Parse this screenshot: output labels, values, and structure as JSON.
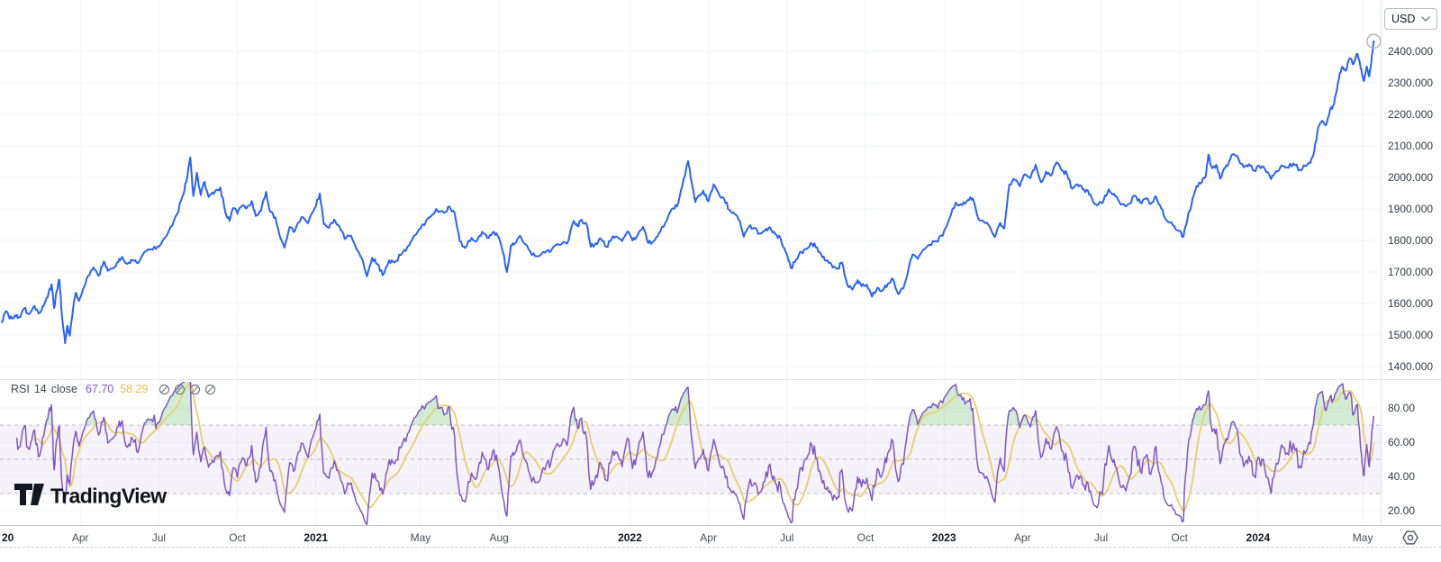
{
  "app": {
    "watermark": "TradingView"
  },
  "currency_selector": {
    "label": "USD"
  },
  "rsi_legend": {
    "title": "RSI",
    "period": "14",
    "source": "close",
    "value": "67.70",
    "ma_value": "58.29",
    "controls": [
      "hide-icon",
      "settings-icon",
      "delete-icon",
      "more-icon"
    ]
  },
  "colors": {
    "price_line": "#2A63F5",
    "rsi_line": "#7E57C2",
    "rsi_ma_line": "#E7CF6E",
    "rsi_value_text": "#7E57C2",
    "rsi_ma_value_text": "#DDC458",
    "band_fill": "#7E57C2",
    "overbought_fill": "#4CAF50",
    "grid": "#F1F3F6",
    "band_dash": "#8B8E99",
    "marker_ring": "#B2B5BE",
    "icon_gray": "#787B86"
  },
  "chart_data": {
    "type": "line",
    "title": "Gold price in USD with RSI(14) indicator, 2020 to May 2024",
    "x_unit": "months_since_jan_2020",
    "x_ticks": [
      {
        "m": 0,
        "label": "20",
        "year": true,
        "edge": true
      },
      {
        "m": 3,
        "label": "Apr"
      },
      {
        "m": 6,
        "label": "Jul"
      },
      {
        "m": 9,
        "label": "Oct"
      },
      {
        "m": 12,
        "label": "2021",
        "year": true
      },
      {
        "m": 16,
        "label": "May"
      },
      {
        "m": 19,
        "label": "Aug"
      },
      {
        "m": 24,
        "label": "2022",
        "year": true
      },
      {
        "m": 27,
        "label": "Apr"
      },
      {
        "m": 30,
        "label": "Jul"
      },
      {
        "m": 33,
        "label": "Oct"
      },
      {
        "m": 36,
        "label": "2023",
        "year": true
      },
      {
        "m": 39,
        "label": "Apr"
      },
      {
        "m": 42,
        "label": "Jul"
      },
      {
        "m": 45,
        "label": "Oct"
      },
      {
        "m": 48,
        "label": "2024",
        "year": true
      },
      {
        "m": 52,
        "label": "May"
      }
    ],
    "price_pane": {
      "yticks": [
        2400,
        2300,
        2200,
        2100,
        2000,
        1900,
        1800,
        1700,
        1600,
        1500,
        1400
      ],
      "tick_decimals": 3,
      "series": {
        "name": "close",
        "points": [
          [
            0,
            1541
          ],
          [
            0.15,
            1576
          ],
          [
            0.3,
            1552
          ],
          [
            0.5,
            1562
          ],
          [
            0.65,
            1556
          ],
          [
            0.85,
            1584
          ],
          [
            1.05,
            1566
          ],
          [
            1.25,
            1592
          ],
          [
            1.45,
            1570
          ],
          [
            1.6,
            1592
          ],
          [
            1.75,
            1620
          ],
          [
            1.9,
            1661
          ],
          [
            2.0,
            1586
          ],
          [
            2.1,
            1640
          ],
          [
            2.2,
            1676
          ],
          [
            2.3,
            1560
          ],
          [
            2.42,
            1474
          ],
          [
            2.5,
            1529
          ],
          [
            2.6,
            1498
          ],
          [
            2.72,
            1580
          ],
          [
            2.82,
            1634
          ],
          [
            2.95,
            1608
          ],
          [
            3.1,
            1645
          ],
          [
            3.3,
            1688
          ],
          [
            3.5,
            1715
          ],
          [
            3.7,
            1688
          ],
          [
            3.9,
            1733
          ],
          [
            4.05,
            1704
          ],
          [
            4.25,
            1712
          ],
          [
            4.45,
            1731
          ],
          [
            4.6,
            1748
          ],
          [
            4.8,
            1726
          ],
          [
            5.0,
            1737
          ],
          [
            5.2,
            1728
          ],
          [
            5.45,
            1764
          ],
          [
            5.7,
            1772
          ],
          [
            5.95,
            1781
          ],
          [
            6.2,
            1806
          ],
          [
            6.45,
            1843
          ],
          [
            6.7,
            1884
          ],
          [
            6.9,
            1940
          ],
          [
            7.05,
            1986
          ],
          [
            7.2,
            2063
          ],
          [
            7.32,
            1941
          ],
          [
            7.45,
            2015
          ],
          [
            7.6,
            1944
          ],
          [
            7.75,
            1986
          ],
          [
            7.9,
            1938
          ],
          [
            8.1,
            1948
          ],
          [
            8.35,
            1968
          ],
          [
            8.55,
            1886
          ],
          [
            8.7,
            1862
          ],
          [
            8.85,
            1903
          ],
          [
            9.0,
            1885
          ],
          [
            9.2,
            1912
          ],
          [
            9.35,
            1902
          ],
          [
            9.55,
            1925
          ],
          [
            9.7,
            1878
          ],
          [
            9.9,
            1893
          ],
          [
            10.1,
            1954
          ],
          [
            10.25,
            1891
          ],
          [
            10.45,
            1873
          ],
          [
            10.65,
            1806
          ],
          [
            10.8,
            1777
          ],
          [
            11.0,
            1843
          ],
          [
            11.2,
            1830
          ],
          [
            11.45,
            1874
          ],
          [
            11.7,
            1855
          ],
          [
            11.95,
            1902
          ],
          [
            12.15,
            1949
          ],
          [
            12.3,
            1852
          ],
          [
            12.5,
            1840
          ],
          [
            12.7,
            1866
          ],
          [
            12.9,
            1844
          ],
          [
            13.1,
            1805
          ],
          [
            13.35,
            1815
          ],
          [
            13.55,
            1772
          ],
          [
            13.75,
            1744
          ],
          [
            13.95,
            1686
          ],
          [
            14.15,
            1745
          ],
          [
            14.35,
            1725
          ],
          [
            14.55,
            1690
          ],
          [
            14.8,
            1737
          ],
          [
            15.0,
            1730
          ],
          [
            15.25,
            1754
          ],
          [
            15.5,
            1780
          ],
          [
            15.75,
            1815
          ],
          [
            16.0,
            1838
          ],
          [
            16.3,
            1872
          ],
          [
            16.6,
            1900
          ],
          [
            16.9,
            1888
          ],
          [
            17.1,
            1908
          ],
          [
            17.3,
            1888
          ],
          [
            17.5,
            1798
          ],
          [
            17.7,
            1776
          ],
          [
            17.95,
            1808
          ],
          [
            18.15,
            1798
          ],
          [
            18.35,
            1827
          ],
          [
            18.55,
            1808
          ],
          [
            18.75,
            1825
          ],
          [
            18.95,
            1814
          ],
          [
            19.15,
            1762
          ],
          [
            19.3,
            1700
          ],
          [
            19.45,
            1784
          ],
          [
            19.6,
            1790
          ],
          [
            19.8,
            1815
          ],
          [
            20.0,
            1788
          ],
          [
            20.25,
            1754
          ],
          [
            20.5,
            1750
          ],
          [
            20.75,
            1761
          ],
          [
            21.0,
            1770
          ],
          [
            21.3,
            1786
          ],
          [
            21.6,
            1790
          ],
          [
            21.85,
            1862
          ],
          [
            22.0,
            1845
          ],
          [
            22.15,
            1866
          ],
          [
            22.35,
            1850
          ],
          [
            22.5,
            1780
          ],
          [
            22.7,
            1792
          ],
          [
            22.9,
            1804
          ],
          [
            23.1,
            1780
          ],
          [
            23.3,
            1805
          ],
          [
            23.5,
            1812
          ],
          [
            23.7,
            1798
          ],
          [
            23.9,
            1828
          ],
          [
            24.1,
            1800
          ],
          [
            24.3,
            1818
          ],
          [
            24.5,
            1843
          ],
          [
            24.7,
            1792
          ],
          [
            24.9,
            1797
          ],
          [
            25.1,
            1822
          ],
          [
            25.35,
            1856
          ],
          [
            25.6,
            1900
          ],
          [
            25.8,
            1908
          ],
          [
            26.0,
            1974
          ],
          [
            26.22,
            2052
          ],
          [
            26.35,
            1988
          ],
          [
            26.5,
            1922
          ],
          [
            26.65,
            1943
          ],
          [
            26.8,
            1958
          ],
          [
            27.0,
            1924
          ],
          [
            27.2,
            1978
          ],
          [
            27.4,
            1948
          ],
          [
            27.6,
            1932
          ],
          [
            27.8,
            1897
          ],
          [
            28.0,
            1884
          ],
          [
            28.2,
            1862
          ],
          [
            28.35,
            1812
          ],
          [
            28.55,
            1844
          ],
          [
            28.75,
            1840
          ],
          [
            28.95,
            1822
          ],
          [
            29.15,
            1830
          ],
          [
            29.35,
            1842
          ],
          [
            29.55,
            1820
          ],
          [
            29.75,
            1808
          ],
          [
            29.95,
            1764
          ],
          [
            30.15,
            1712
          ],
          [
            30.35,
            1740
          ],
          [
            30.55,
            1764
          ],
          [
            30.75,
            1773
          ],
          [
            30.95,
            1790
          ],
          [
            31.15,
            1778
          ],
          [
            31.35,
            1747
          ],
          [
            31.55,
            1737
          ],
          [
            31.75,
            1714
          ],
          [
            31.95,
            1712
          ],
          [
            32.1,
            1730
          ],
          [
            32.3,
            1662
          ],
          [
            32.5,
            1644
          ],
          [
            32.7,
            1674
          ],
          [
            32.85,
            1655
          ],
          [
            33.05,
            1660
          ],
          [
            33.25,
            1622
          ],
          [
            33.45,
            1650
          ],
          [
            33.65,
            1642
          ],
          [
            33.85,
            1662
          ],
          [
            34.05,
            1677
          ],
          [
            34.25,
            1630
          ],
          [
            34.45,
            1648
          ],
          [
            34.65,
            1712
          ],
          [
            34.8,
            1755
          ],
          [
            35.0,
            1742
          ],
          [
            35.2,
            1770
          ],
          [
            35.45,
            1786
          ],
          [
            35.7,
            1798
          ],
          [
            35.95,
            1815
          ],
          [
            36.2,
            1868
          ],
          [
            36.45,
            1920
          ],
          [
            36.7,
            1912
          ],
          [
            36.9,
            1928
          ],
          [
            37.1,
            1934
          ],
          [
            37.3,
            1872
          ],
          [
            37.5,
            1862
          ],
          [
            37.75,
            1843
          ],
          [
            37.95,
            1811
          ],
          [
            38.15,
            1856
          ],
          [
            38.3,
            1838
          ],
          [
            38.5,
            1978
          ],
          [
            38.7,
            1992
          ],
          [
            38.9,
            1972
          ],
          [
            39.1,
            2010
          ],
          [
            39.3,
            1998
          ],
          [
            39.5,
            2040
          ],
          [
            39.7,
            1985
          ],
          [
            39.9,
            2018
          ],
          [
            40.1,
            2006
          ],
          [
            40.3,
            2048
          ],
          [
            40.5,
            2022
          ],
          [
            40.7,
            2011
          ],
          [
            40.9,
            1964
          ],
          [
            41.1,
            1978
          ],
          [
            41.3,
            1962
          ],
          [
            41.5,
            1958
          ],
          [
            41.7,
            1922
          ],
          [
            41.9,
            1914
          ],
          [
            42.1,
            1928
          ],
          [
            42.3,
            1962
          ],
          [
            42.5,
            1948
          ],
          [
            42.7,
            1922
          ],
          [
            42.9,
            1912
          ],
          [
            43.1,
            1918
          ],
          [
            43.3,
            1942
          ],
          [
            43.5,
            1920
          ],
          [
            43.7,
            1932
          ],
          [
            43.9,
            1916
          ],
          [
            44.1,
            1940
          ],
          [
            44.3,
            1902
          ],
          [
            44.5,
            1864
          ],
          [
            44.75,
            1848
          ],
          [
            44.95,
            1832
          ],
          [
            45.15,
            1812
          ],
          [
            45.3,
            1868
          ],
          [
            45.5,
            1934
          ],
          [
            45.65,
            1972
          ],
          [
            45.85,
            1984
          ],
          [
            46.0,
            2004
          ],
          [
            46.1,
            2072
          ],
          [
            46.25,
            2029
          ],
          [
            46.4,
            2040
          ],
          [
            46.55,
            1996
          ],
          [
            46.75,
            2032
          ],
          [
            46.9,
            2052
          ],
          [
            47.05,
            2074
          ],
          [
            47.25,
            2060
          ],
          [
            47.45,
            2032
          ],
          [
            47.65,
            2042
          ],
          [
            47.85,
            2022
          ],
          [
            48.05,
            2036
          ],
          [
            48.25,
            2028
          ],
          [
            48.5,
            1995
          ],
          [
            48.7,
            2020
          ],
          [
            48.9,
            2038
          ],
          [
            49.1,
            2032
          ],
          [
            49.35,
            2044
          ],
          [
            49.6,
            2024
          ],
          [
            49.8,
            2036
          ],
          [
            50.0,
            2046
          ],
          [
            50.15,
            2086
          ],
          [
            50.3,
            2160
          ],
          [
            50.45,
            2180
          ],
          [
            50.6,
            2166
          ],
          [
            50.75,
            2214
          ],
          [
            50.9,
            2232
          ],
          [
            51.05,
            2300
          ],
          [
            51.2,
            2350
          ],
          [
            51.35,
            2338
          ],
          [
            51.5,
            2378
          ],
          [
            51.65,
            2360
          ],
          [
            51.8,
            2392
          ],
          [
            51.95,
            2340
          ],
          [
            52.05,
            2306
          ],
          [
            52.15,
            2352
          ],
          [
            52.25,
            2320
          ],
          [
            52.35,
            2388
          ],
          [
            52.42,
            2432
          ]
        ]
      }
    },
    "rsi_pane": {
      "yticks": [
        80,
        60,
        40,
        20
      ],
      "tick_decimals": 2,
      "band_levels": [
        70,
        50,
        30
      ],
      "period": 14,
      "ma_period": 14,
      "last_value": 67.7,
      "ma_last_value": 58.29
    }
  }
}
